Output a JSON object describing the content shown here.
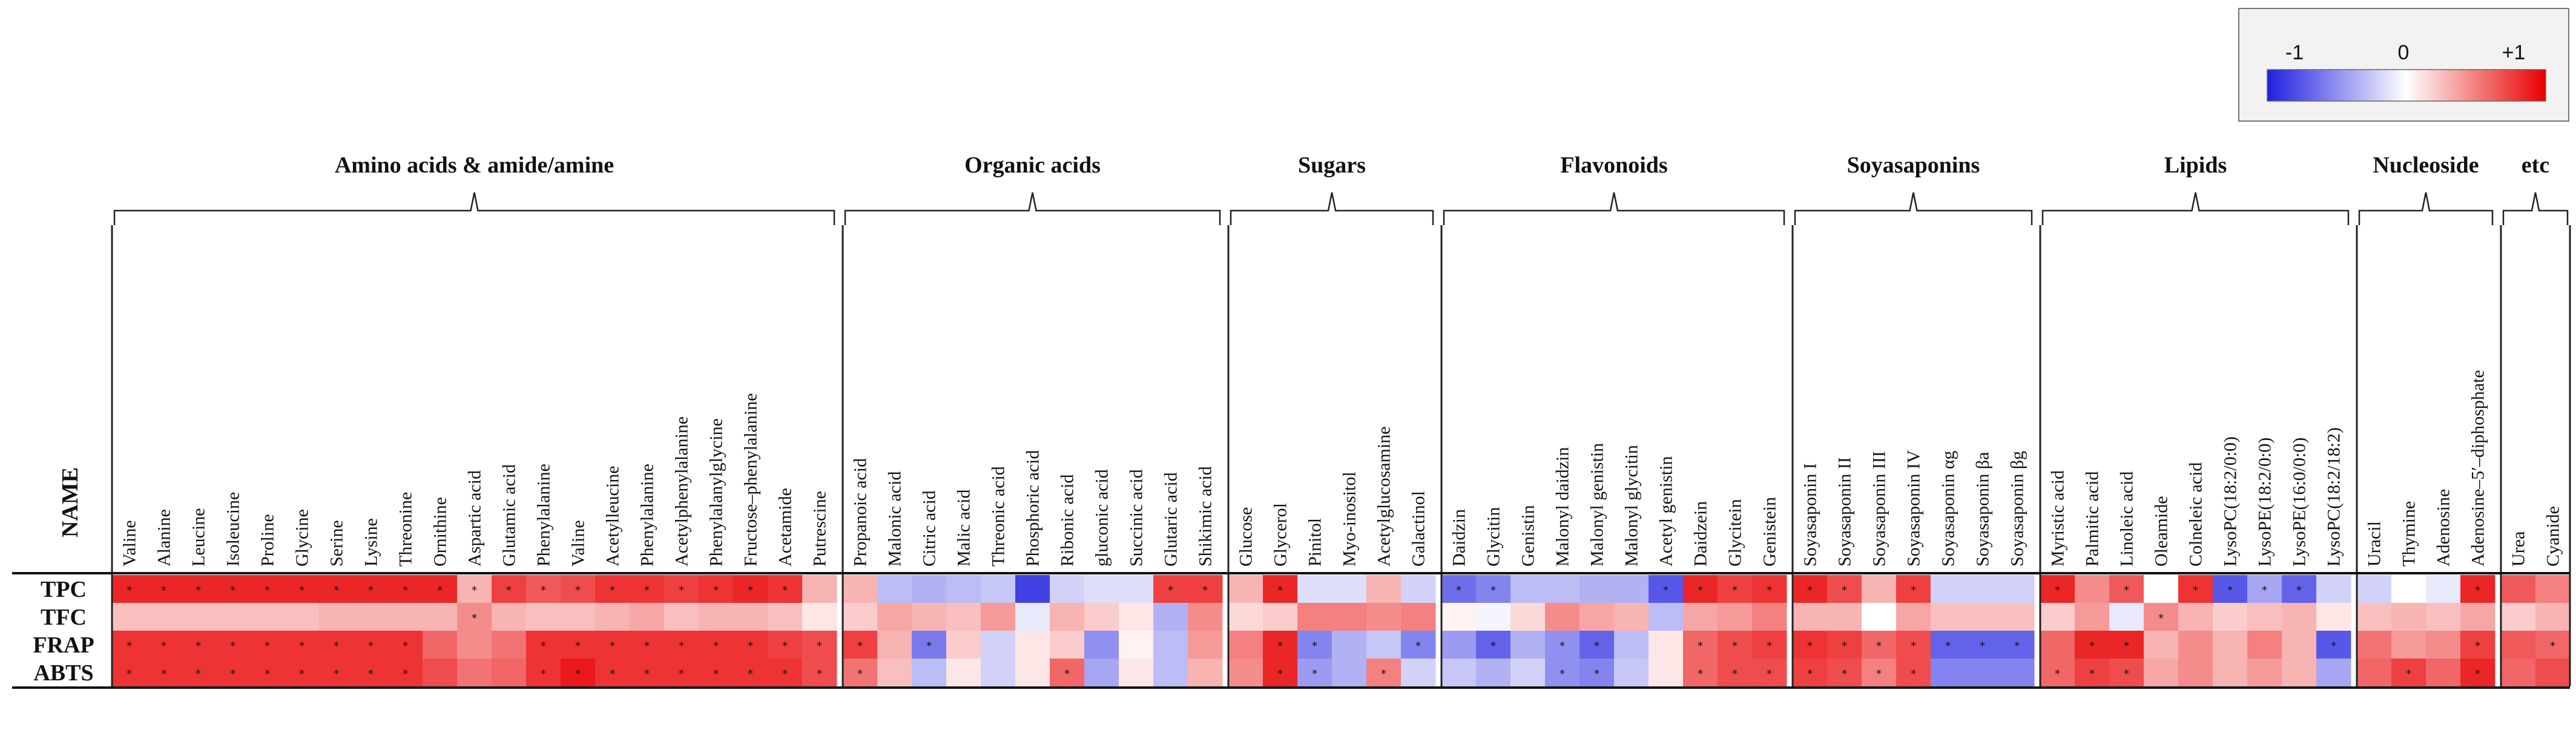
{
  "chart_data": {
    "type": "heatmap",
    "name_header": "NAME",
    "rows": [
      "TPC",
      "TFC",
      "FRAP",
      "ABTS"
    ],
    "legend": {
      "min_label": "-1",
      "mid_label": "0",
      "max_label": "+1",
      "min_color": "#2020e0",
      "mid_color": "#ffffff",
      "max_color": "#e80000",
      "range": [
        -1,
        1
      ]
    },
    "groups": [
      {
        "name": "Amino acids & amide/amine",
        "columns": [
          "Valine",
          "Alanine",
          "Leucine",
          "Isoleucine",
          "Proline",
          "Glycine",
          "Serine",
          "Lysine",
          "Threonine",
          "Ornithine",
          "Aspartic acid",
          "Glutamic acid",
          "Phenylalanine",
          "Valine",
          "Acetylleucine",
          "Phenylalanine",
          "Acetylphenylalanine",
          "Phenylalanylglycine",
          "Fructose–phenylalanine",
          "Acetamide",
          "Putrescine"
        ],
        "values": [
          [
            0.85,
            0.85,
            0.85,
            0.85,
            0.85,
            0.85,
            0.85,
            0.85,
            0.85,
            0.85,
            0.3,
            0.75,
            0.65,
            0.7,
            0.8,
            0.8,
            0.75,
            0.8,
            0.85,
            0.8,
            0.3
          ],
          [
            0.25,
            0.25,
            0.25,
            0.25,
            0.25,
            0.25,
            0.3,
            0.3,
            0.3,
            0.3,
            0.45,
            0.3,
            0.25,
            0.25,
            0.3,
            0.35,
            0.25,
            0.3,
            0.3,
            0.25,
            0.1
          ],
          [
            0.8,
            0.8,
            0.8,
            0.8,
            0.8,
            0.8,
            0.8,
            0.8,
            0.8,
            0.6,
            0.45,
            0.55,
            0.8,
            0.8,
            0.8,
            0.8,
            0.8,
            0.8,
            0.8,
            0.75,
            0.7
          ],
          [
            0.8,
            0.8,
            0.8,
            0.8,
            0.8,
            0.8,
            0.8,
            0.8,
            0.8,
            0.7,
            0.55,
            0.6,
            0.8,
            0.9,
            0.8,
            0.8,
            0.8,
            0.8,
            0.8,
            0.8,
            0.7
          ]
        ],
        "stars": [
          [
            1,
            1,
            1,
            1,
            1,
            1,
            1,
            1,
            1,
            1,
            1,
            1,
            1,
            1,
            1,
            1,
            1,
            1,
            1,
            1,
            0
          ],
          [
            0,
            0,
            0,
            0,
            0,
            0,
            0,
            0,
            0,
            0,
            1,
            0,
            0,
            0,
            0,
            0,
            0,
            0,
            0,
            0,
            0
          ],
          [
            1,
            1,
            1,
            1,
            1,
            1,
            1,
            1,
            1,
            0,
            0,
            0,
            1,
            1,
            1,
            1,
            1,
            1,
            1,
            1,
            1
          ],
          [
            1,
            1,
            1,
            1,
            1,
            1,
            1,
            1,
            1,
            0,
            0,
            0,
            1,
            1,
            1,
            1,
            1,
            1,
            1,
            1,
            1
          ]
        ]
      },
      {
        "name": "Organic acids",
        "columns": [
          "Propanoic acid",
          "Malonic acid",
          "Citric acid",
          "Malic acid",
          "Threonic acid",
          "Phosphoric acid",
          "Ribonic acid",
          "gluconic acid",
          "Succinic acid",
          "Glutaric acid",
          "Shikimic acid"
        ],
        "values": [
          [
            0.3,
            -0.3,
            -0.35,
            -0.3,
            -0.25,
            -0.85,
            -0.2,
            -0.15,
            -0.15,
            0.75,
            0.75
          ],
          [
            0.2,
            0.35,
            0.3,
            0.25,
            0.4,
            -0.1,
            0.3,
            0.2,
            0.1,
            -0.35,
            0.45
          ],
          [
            0.75,
            0.3,
            -0.6,
            0.2,
            -0.2,
            0.1,
            0.2,
            -0.5,
            0.05,
            -0.3,
            0.4
          ],
          [
            0.55,
            0.25,
            -0.3,
            0.1,
            -0.2,
            0.1,
            0.6,
            -0.4,
            0.1,
            -0.3,
            0.3
          ]
        ],
        "stars": [
          [
            0,
            0,
            0,
            0,
            0,
            0,
            0,
            0,
            0,
            1,
            1
          ],
          [
            0,
            0,
            0,
            0,
            0,
            0,
            0,
            0,
            0,
            0,
            0
          ],
          [
            1,
            0,
            1,
            0,
            0,
            0,
            0,
            0,
            0,
            0,
            0
          ],
          [
            1,
            0,
            0,
            0,
            0,
            0,
            1,
            0,
            0,
            0,
            0
          ]
        ]
      },
      {
        "name": "Sugars",
        "columns": [
          "Glucose",
          "Glycerol",
          "Pinitol",
          "Myo-inositol",
          "Acetylglucosamine",
          "Galactinol"
        ],
        "values": [
          [
            0.3,
            0.85,
            -0.15,
            -0.15,
            0.3,
            -0.2
          ],
          [
            0.15,
            0.2,
            0.5,
            0.5,
            0.45,
            0.5
          ],
          [
            0.5,
            0.85,
            -0.55,
            -0.35,
            -0.25,
            -0.55
          ],
          [
            0.45,
            0.85,
            -0.45,
            -0.35,
            0.5,
            -0.2
          ]
        ],
        "stars": [
          [
            0,
            1,
            0,
            0,
            0,
            0
          ],
          [
            0,
            0,
            0,
            0,
            0,
            0
          ],
          [
            0,
            1,
            1,
            0,
            0,
            1
          ],
          [
            0,
            1,
            1,
            0,
            1,
            0
          ]
        ]
      },
      {
        "name": "Flavonoids",
        "columns": [
          "Daidzin",
          "Glycitin",
          "Genistin",
          "Malonyl daidzin",
          "Malonyl genistin",
          "Malonyl glycitin",
          "Acetyl genistin",
          "Daidzein",
          "Glycitein",
          "Genistein"
        ],
        "values": [
          [
            -0.65,
            -0.55,
            -0.3,
            -0.3,
            -0.35,
            -0.35,
            -0.75,
            0.85,
            0.75,
            0.8
          ],
          [
            0.05,
            -0.05,
            0.15,
            0.45,
            0.35,
            0.3,
            -0.3,
            0.35,
            0.4,
            0.5
          ],
          [
            -0.45,
            -0.7,
            -0.35,
            -0.5,
            -0.7,
            -0.3,
            0.1,
            0.6,
            0.7,
            0.75
          ],
          [
            -0.25,
            -0.35,
            -0.2,
            -0.5,
            -0.55,
            -0.25,
            0.1,
            0.6,
            0.7,
            0.7
          ]
        ],
        "stars": [
          [
            1,
            1,
            0,
            0,
            0,
            0,
            1,
            1,
            1,
            1
          ],
          [
            0,
            0,
            0,
            0,
            0,
            0,
            0,
            0,
            0,
            0
          ],
          [
            0,
            1,
            0,
            1,
            1,
            0,
            0,
            1,
            1,
            1
          ],
          [
            0,
            0,
            0,
            1,
            1,
            0,
            0,
            1,
            1,
            1
          ]
        ]
      },
      {
        "name": "Soyasaponins",
        "columns": [
          "Soyasaponin I",
          "Soyasaponin II",
          "Soyasaponin III",
          "Soyasaponin IV",
          "Soyasaponin αg",
          "Soyasaponin βa",
          "Soyasaponin βg"
        ],
        "values": [
          [
            0.85,
            0.7,
            0.3,
            0.75,
            -0.2,
            -0.2,
            -0.2
          ],
          [
            0.3,
            0.3,
            0.0,
            0.35,
            0.25,
            0.25,
            0.25
          ],
          [
            0.8,
            0.75,
            0.6,
            0.7,
            -0.7,
            -0.7,
            -0.7
          ],
          [
            0.75,
            0.7,
            0.5,
            0.7,
            -0.55,
            -0.55,
            -0.55
          ]
        ],
        "stars": [
          [
            1,
            1,
            0,
            1,
            0,
            0,
            0
          ],
          [
            0,
            0,
            0,
            0,
            0,
            0,
            0
          ],
          [
            1,
            1,
            1,
            1,
            1,
            1,
            1
          ],
          [
            1,
            1,
            1,
            1,
            0,
            0,
            0
          ]
        ]
      },
      {
        "name": "Lipids",
        "columns": [
          "Myristic acid",
          "Palmitic acid",
          "Linoleic acid",
          "Oleamide",
          "Colneleic acid",
          "LysoPC(18:2/0:0)",
          "LysoPE(18:2/0:0)",
          "LysoPE(16:0/0:0)",
          "LysoPC(18:2/18:2)"
        ],
        "values": [
          [
            0.85,
            0.45,
            0.65,
            0.0,
            0.8,
            -0.75,
            -0.4,
            -0.7,
            -0.2
          ],
          [
            0.2,
            0.4,
            -0.1,
            0.45,
            0.3,
            0.2,
            0.25,
            0.3,
            0.1
          ],
          [
            0.6,
            0.85,
            0.85,
            0.3,
            0.45,
            0.3,
            0.5,
            0.3,
            -0.75
          ],
          [
            0.6,
            0.75,
            0.7,
            0.35,
            0.45,
            0.3,
            0.4,
            0.3,
            -0.4
          ]
        ],
        "stars": [
          [
            1,
            0,
            1,
            0,
            1,
            1,
            1,
            1,
            0
          ],
          [
            0,
            0,
            0,
            1,
            0,
            0,
            0,
            0,
            0
          ],
          [
            0,
            1,
            1,
            0,
            0,
            0,
            0,
            0,
            1
          ],
          [
            1,
            1,
            1,
            0,
            0,
            0,
            0,
            0,
            0
          ]
        ]
      },
      {
        "name": "Nucleoside",
        "columns": [
          "Uracil",
          "Thymine",
          "Adenosine",
          "Adenosine–5′–diphosphate"
        ],
        "values": [
          [
            -0.2,
            0.0,
            -0.1,
            0.85
          ],
          [
            0.25,
            0.3,
            0.25,
            0.35
          ],
          [
            0.55,
            0.4,
            0.45,
            0.75
          ],
          [
            0.6,
            0.75,
            0.6,
            0.85
          ]
        ],
        "stars": [
          [
            0,
            0,
            0,
            1
          ],
          [
            0,
            0,
            0,
            0
          ],
          [
            0,
            0,
            0,
            1
          ],
          [
            0,
            1,
            0,
            1
          ]
        ]
      },
      {
        "name": "etc",
        "columns": [
          "Urea",
          "Cyanide"
        ],
        "values": [
          [
            0.65,
            0.5
          ],
          [
            0.2,
            0.3
          ],
          [
            0.65,
            0.6
          ],
          [
            0.6,
            0.7
          ]
        ],
        "stars": [
          [
            0,
            0
          ],
          [
            0,
            0
          ],
          [
            0,
            1
          ],
          [
            0,
            0
          ]
        ]
      }
    ]
  }
}
